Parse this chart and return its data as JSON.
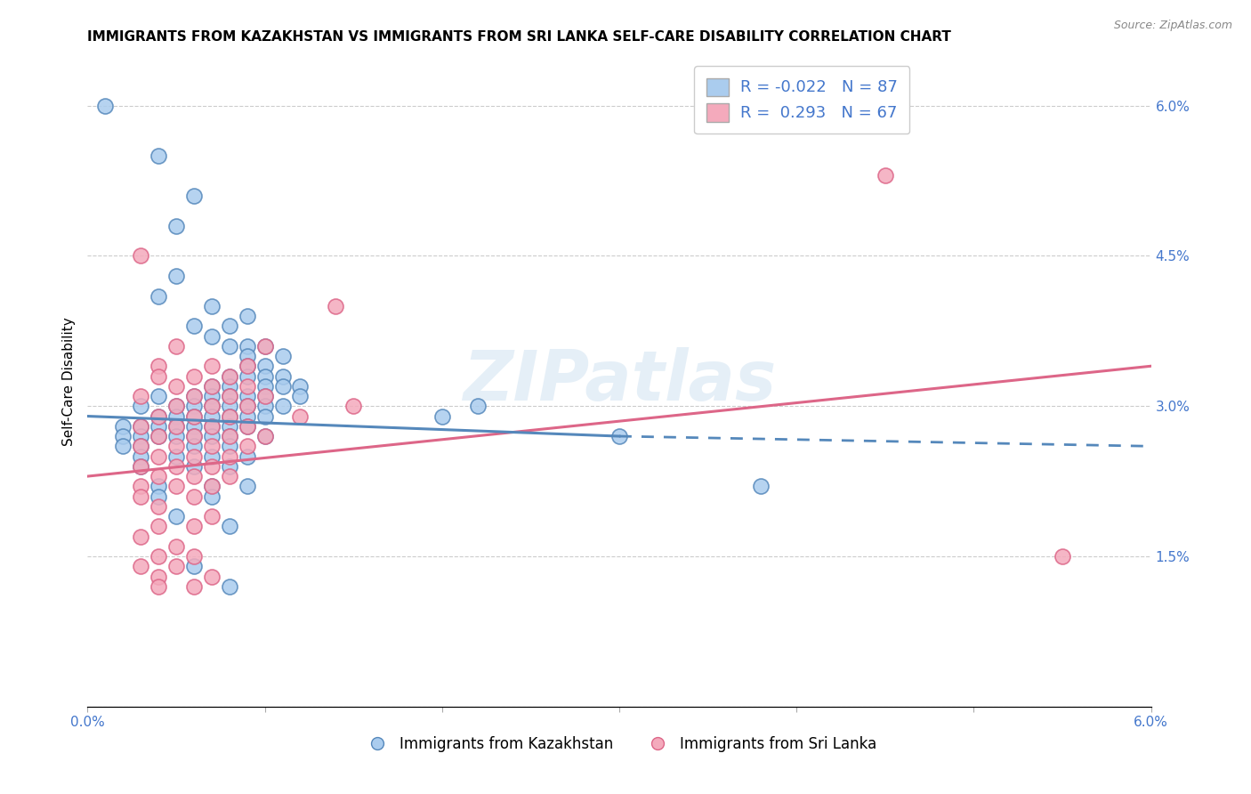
{
  "title": "IMMIGRANTS FROM KAZAKHSTAN VS IMMIGRANTS FROM SRI LANKA SELF-CARE DISABILITY CORRELATION CHART",
  "source": "Source: ZipAtlas.com",
  "ylabel": "Self-Care Disability",
  "xmin": 0.0,
  "xmax": 0.06,
  "ymin": 0.0,
  "ymax": 0.065,
  "right_yticks": [
    0.0,
    0.015,
    0.03,
    0.045,
    0.06
  ],
  "right_yticklabels": [
    "",
    "1.5%",
    "3.0%",
    "4.5%",
    "6.0%"
  ],
  "color_kaz": "#aaccee",
  "color_sri": "#f4aabc",
  "line_color_kaz": "#5588bb",
  "line_color_sri": "#dd6688",
  "watermark": "ZIPatlas",
  "kaz_line_solid": [
    [
      0.0,
      0.029
    ],
    [
      0.03,
      0.027
    ]
  ],
  "kaz_line_dashed": [
    [
      0.03,
      0.027
    ],
    [
      0.06,
      0.026
    ]
  ],
  "sri_line": [
    [
      0.0,
      0.023
    ],
    [
      0.06,
      0.034
    ]
  ],
  "scatter_kaz": [
    [
      0.001,
      0.06
    ],
    [
      0.004,
      0.055
    ],
    [
      0.006,
      0.051
    ],
    [
      0.005,
      0.048
    ],
    [
      0.005,
      0.043
    ],
    [
      0.004,
      0.041
    ],
    [
      0.007,
      0.04
    ],
    [
      0.009,
      0.039
    ],
    [
      0.006,
      0.038
    ],
    [
      0.008,
      0.038
    ],
    [
      0.007,
      0.037
    ],
    [
      0.008,
      0.036
    ],
    [
      0.009,
      0.036
    ],
    [
      0.01,
      0.036
    ],
    [
      0.009,
      0.035
    ],
    [
      0.011,
      0.035
    ],
    [
      0.009,
      0.034
    ],
    [
      0.01,
      0.034
    ],
    [
      0.008,
      0.033
    ],
    [
      0.009,
      0.033
    ],
    [
      0.01,
      0.033
    ],
    [
      0.011,
      0.033
    ],
    [
      0.007,
      0.032
    ],
    [
      0.008,
      0.032
    ],
    [
      0.01,
      0.032
    ],
    [
      0.011,
      0.032
    ],
    [
      0.012,
      0.032
    ],
    [
      0.004,
      0.031
    ],
    [
      0.006,
      0.031
    ],
    [
      0.007,
      0.031
    ],
    [
      0.008,
      0.031
    ],
    [
      0.009,
      0.031
    ],
    [
      0.01,
      0.031
    ],
    [
      0.012,
      0.031
    ],
    [
      0.003,
      0.03
    ],
    [
      0.005,
      0.03
    ],
    [
      0.006,
      0.03
    ],
    [
      0.007,
      0.03
    ],
    [
      0.008,
      0.03
    ],
    [
      0.009,
      0.03
    ],
    [
      0.01,
      0.03
    ],
    [
      0.011,
      0.03
    ],
    [
      0.004,
      0.029
    ],
    [
      0.005,
      0.029
    ],
    [
      0.006,
      0.029
    ],
    [
      0.007,
      0.029
    ],
    [
      0.008,
      0.029
    ],
    [
      0.009,
      0.029
    ],
    [
      0.01,
      0.029
    ],
    [
      0.02,
      0.029
    ],
    [
      0.002,
      0.028
    ],
    [
      0.003,
      0.028
    ],
    [
      0.004,
      0.028
    ],
    [
      0.005,
      0.028
    ],
    [
      0.006,
      0.028
    ],
    [
      0.007,
      0.028
    ],
    [
      0.008,
      0.028
    ],
    [
      0.009,
      0.028
    ],
    [
      0.002,
      0.027
    ],
    [
      0.003,
      0.027
    ],
    [
      0.004,
      0.027
    ],
    [
      0.005,
      0.027
    ],
    [
      0.006,
      0.027
    ],
    [
      0.007,
      0.027
    ],
    [
      0.008,
      0.027
    ],
    [
      0.01,
      0.027
    ],
    [
      0.002,
      0.026
    ],
    [
      0.003,
      0.026
    ],
    [
      0.006,
      0.026
    ],
    [
      0.008,
      0.026
    ],
    [
      0.003,
      0.025
    ],
    [
      0.005,
      0.025
    ],
    [
      0.007,
      0.025
    ],
    [
      0.009,
      0.025
    ],
    [
      0.003,
      0.024
    ],
    [
      0.006,
      0.024
    ],
    [
      0.008,
      0.024
    ],
    [
      0.004,
      0.022
    ],
    [
      0.007,
      0.022
    ],
    [
      0.009,
      0.022
    ],
    [
      0.004,
      0.021
    ],
    [
      0.007,
      0.021
    ],
    [
      0.005,
      0.019
    ],
    [
      0.008,
      0.018
    ],
    [
      0.006,
      0.014
    ],
    [
      0.008,
      0.012
    ],
    [
      0.022,
      0.03
    ],
    [
      0.03,
      0.027
    ],
    [
      0.038,
      0.022
    ]
  ],
  "scatter_sri": [
    [
      0.003,
      0.045
    ],
    [
      0.014,
      0.04
    ],
    [
      0.005,
      0.036
    ],
    [
      0.01,
      0.036
    ],
    [
      0.004,
      0.034
    ],
    [
      0.007,
      0.034
    ],
    [
      0.009,
      0.034
    ],
    [
      0.004,
      0.033
    ],
    [
      0.006,
      0.033
    ],
    [
      0.008,
      0.033
    ],
    [
      0.005,
      0.032
    ],
    [
      0.007,
      0.032
    ],
    [
      0.009,
      0.032
    ],
    [
      0.003,
      0.031
    ],
    [
      0.006,
      0.031
    ],
    [
      0.008,
      0.031
    ],
    [
      0.01,
      0.031
    ],
    [
      0.005,
      0.03
    ],
    [
      0.007,
      0.03
    ],
    [
      0.009,
      0.03
    ],
    [
      0.015,
      0.03
    ],
    [
      0.004,
      0.029
    ],
    [
      0.006,
      0.029
    ],
    [
      0.008,
      0.029
    ],
    [
      0.012,
      0.029
    ],
    [
      0.003,
      0.028
    ],
    [
      0.005,
      0.028
    ],
    [
      0.007,
      0.028
    ],
    [
      0.009,
      0.028
    ],
    [
      0.004,
      0.027
    ],
    [
      0.006,
      0.027
    ],
    [
      0.008,
      0.027
    ],
    [
      0.01,
      0.027
    ],
    [
      0.003,
      0.026
    ],
    [
      0.005,
      0.026
    ],
    [
      0.007,
      0.026
    ],
    [
      0.009,
      0.026
    ],
    [
      0.004,
      0.025
    ],
    [
      0.006,
      0.025
    ],
    [
      0.008,
      0.025
    ],
    [
      0.003,
      0.024
    ],
    [
      0.005,
      0.024
    ],
    [
      0.007,
      0.024
    ],
    [
      0.004,
      0.023
    ],
    [
      0.006,
      0.023
    ],
    [
      0.008,
      0.023
    ],
    [
      0.003,
      0.022
    ],
    [
      0.005,
      0.022
    ],
    [
      0.007,
      0.022
    ],
    [
      0.003,
      0.021
    ],
    [
      0.006,
      0.021
    ],
    [
      0.004,
      0.02
    ],
    [
      0.007,
      0.019
    ],
    [
      0.004,
      0.018
    ],
    [
      0.006,
      0.018
    ],
    [
      0.003,
      0.017
    ],
    [
      0.005,
      0.016
    ],
    [
      0.004,
      0.015
    ],
    [
      0.006,
      0.015
    ],
    [
      0.003,
      0.014
    ],
    [
      0.005,
      0.014
    ],
    [
      0.004,
      0.013
    ],
    [
      0.007,
      0.013
    ],
    [
      0.004,
      0.012
    ],
    [
      0.006,
      0.012
    ],
    [
      0.045,
      0.053
    ],
    [
      0.055,
      0.015
    ]
  ]
}
